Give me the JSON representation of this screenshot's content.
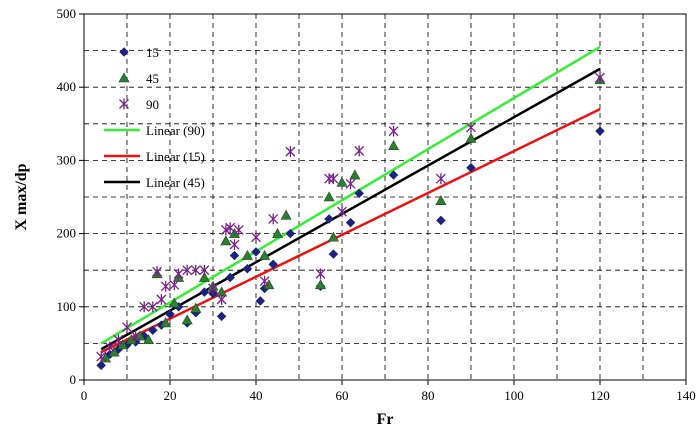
{
  "chart_data": {
    "type": "scatter",
    "xlabel": "Fr",
    "ylabel": "X max/dp",
    "xlim": [
      0,
      140
    ],
    "ylim": [
      0,
      500
    ],
    "xticks": [
      0,
      20,
      40,
      60,
      80,
      100,
      120,
      140
    ],
    "yticks": [
      0,
      100,
      200,
      300,
      400,
      500
    ],
    "grid": "dashed, both axes",
    "legend_position": "top-left",
    "series": [
      {
        "name": "15",
        "marker": "diamond",
        "color": "#1a237e",
        "points": [
          [
            4,
            20
          ],
          [
            6,
            35
          ],
          [
            8,
            42
          ],
          [
            10,
            48
          ],
          [
            12,
            52
          ],
          [
            14,
            60
          ],
          [
            16,
            68
          ],
          [
            18,
            75
          ],
          [
            20,
            90
          ],
          [
            22,
            100
          ],
          [
            24,
            78
          ],
          [
            26,
            92
          ],
          [
            28,
            120
          ],
          [
            30,
            118
          ],
          [
            32,
            87
          ],
          [
            34,
            140
          ],
          [
            35,
            170
          ],
          [
            38,
            152
          ],
          [
            40,
            175
          ],
          [
            41,
            108
          ],
          [
            42,
            125
          ],
          [
            44,
            158
          ],
          [
            48,
            200
          ],
          [
            55,
            128
          ],
          [
            57,
            220
          ],
          [
            58,
            172
          ],
          [
            62,
            215
          ],
          [
            64,
            255
          ],
          [
            72,
            280
          ],
          [
            83,
            218
          ],
          [
            90,
            290
          ],
          [
            120,
            340
          ]
        ]
      },
      {
        "name": "45",
        "marker": "triangle",
        "color": "#2e7d32",
        "points": [
          [
            5,
            30
          ],
          [
            7,
            38
          ],
          [
            9,
            48
          ],
          [
            11,
            55
          ],
          [
            13,
            60
          ],
          [
            15,
            55
          ],
          [
            17,
            145
          ],
          [
            19,
            78
          ],
          [
            21,
            105
          ],
          [
            22,
            140
          ],
          [
            24,
            82
          ],
          [
            26,
            98
          ],
          [
            28,
            140
          ],
          [
            30,
            128
          ],
          [
            32,
            120
          ],
          [
            33,
            190
          ],
          [
            35,
            200
          ],
          [
            38,
            170
          ],
          [
            42,
            170
          ],
          [
            43,
            130
          ],
          [
            45,
            200
          ],
          [
            47,
            225
          ],
          [
            55,
            130
          ],
          [
            57,
            250
          ],
          [
            58,
            195
          ],
          [
            60,
            270
          ],
          [
            63,
            280
          ],
          [
            72,
            320
          ],
          [
            83,
            245
          ],
          [
            90,
            330
          ],
          [
            120,
            410
          ]
        ]
      },
      {
        "name": "90",
        "marker": "star",
        "color": "#7b1f8a",
        "points": [
          [
            4,
            32
          ],
          [
            6,
            45
          ],
          [
            8,
            55
          ],
          [
            10,
            72
          ],
          [
            12,
            60
          ],
          [
            14,
            100
          ],
          [
            16,
            100
          ],
          [
            17,
            148
          ],
          [
            18,
            110
          ],
          [
            19,
            128
          ],
          [
            21,
            130
          ],
          [
            22,
            145
          ],
          [
            24,
            150
          ],
          [
            26,
            150
          ],
          [
            28,
            150
          ],
          [
            30,
            125
          ],
          [
            32,
            110
          ],
          [
            33,
            205
          ],
          [
            34,
            208
          ],
          [
            35,
            185
          ],
          [
            36,
            205
          ],
          [
            40,
            195
          ],
          [
            42,
            135
          ],
          [
            44,
            220
          ],
          [
            48,
            312
          ],
          [
            55,
            145
          ],
          [
            57,
            275
          ],
          [
            58,
            275
          ],
          [
            60,
            230
          ],
          [
            62,
            268
          ],
          [
            64,
            313
          ],
          [
            72,
            340
          ],
          [
            83,
            275
          ],
          [
            90,
            345
          ],
          [
            120,
            413
          ]
        ]
      }
    ],
    "trendlines": [
      {
        "name": "Linear (90)",
        "color": "#33ee33",
        "x": [
          4,
          120
        ],
        "y": [
          50,
          455
        ]
      },
      {
        "name": "Linear (15)",
        "color": "#ee1111",
        "x": [
          4,
          120
        ],
        "y": [
          38,
          370
        ]
      },
      {
        "name": "Linear (45)",
        "color": "#000000",
        "x": [
          4,
          120
        ],
        "y": [
          42,
          425
        ]
      }
    ]
  }
}
